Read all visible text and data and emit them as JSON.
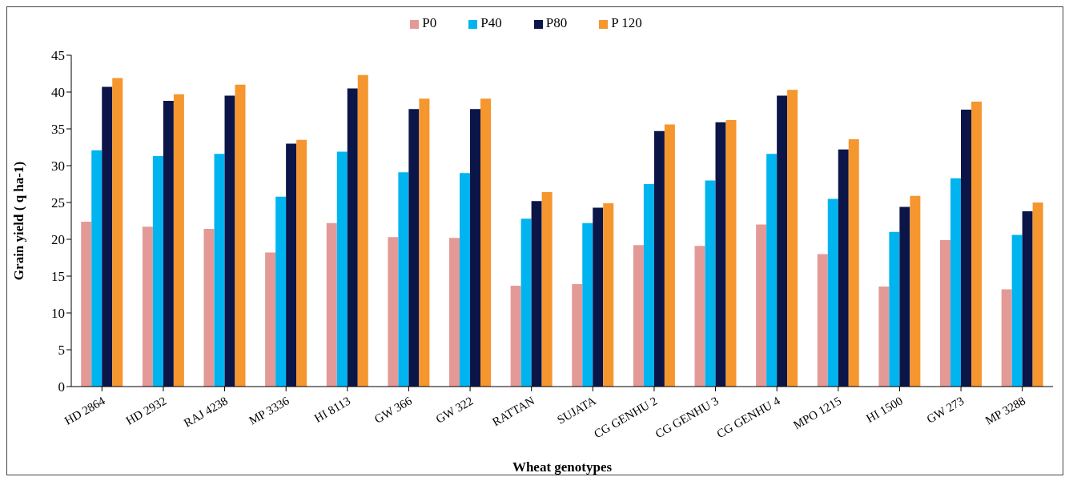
{
  "chart_data": {
    "type": "bar",
    "xlabel": "Wheat genotypes",
    "ylabel": "Grain yield ( q ha-1)",
    "categories": [
      "HD 2864",
      "HD 2932",
      "RAJ 4238",
      "MP 3336",
      "HI 8113",
      "GW 366",
      "GW 322",
      "RATTAN",
      "SUJATA",
      "CG GENHU 2",
      "CG GENHU 3",
      "CG GENHU 4",
      "MPO 1215",
      "HI 1500",
      "GW 273",
      "MP 3288"
    ],
    "series": [
      {
        "name": "P0",
        "color": "#e39a96",
        "values": [
          22.4,
          21.7,
          21.4,
          18.2,
          22.2,
          20.3,
          20.2,
          13.7,
          13.9,
          19.2,
          19.1,
          22.0,
          18.0,
          13.6,
          19.9,
          13.2
        ]
      },
      {
        "name": "P40",
        "color": "#00b4ef",
        "values": [
          32.1,
          31.3,
          31.6,
          25.8,
          31.9,
          29.1,
          29.0,
          22.8,
          22.2,
          27.5,
          28.0,
          31.6,
          25.5,
          21.0,
          28.3,
          20.6
        ]
      },
      {
        "name": "P80",
        "color": "#0b1548",
        "values": [
          40.7,
          38.8,
          39.5,
          33.0,
          40.5,
          37.7,
          37.7,
          25.2,
          24.3,
          34.7,
          35.9,
          39.5,
          32.2,
          24.4,
          37.6,
          23.8
        ]
      },
      {
        "name": "P 120",
        "color": "#f5962e",
        "values": [
          41.9,
          39.7,
          41.0,
          33.5,
          42.3,
          39.1,
          39.1,
          26.4,
          24.9,
          35.6,
          36.2,
          40.3,
          33.6,
          25.9,
          38.7,
          25.0
        ]
      }
    ],
    "ylim": [
      0,
      45
    ],
    "yticks": [
      0,
      5,
      10,
      15,
      20,
      25,
      30,
      35,
      40,
      45
    ],
    "grid": false,
    "legend": "top"
  }
}
